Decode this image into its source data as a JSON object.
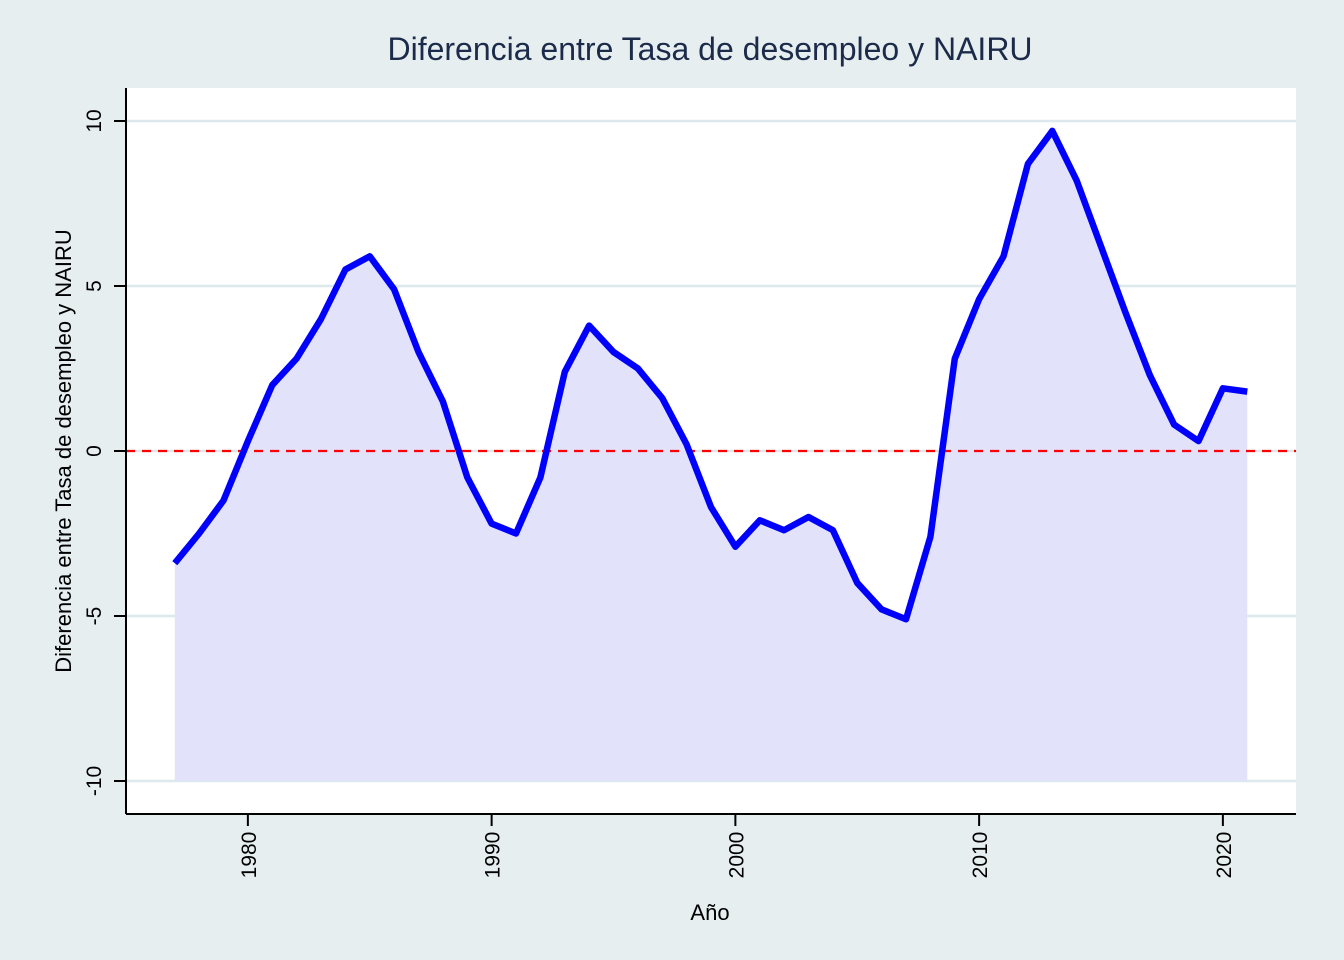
{
  "chart_data": {
    "type": "area",
    "title": "Diferencia entre Tasa de desempleo y NAIRU",
    "xlabel": "Año",
    "ylabel": "Diferencia entre Tasa de desempleo y NAIRU",
    "xlim": [
      1975,
      2023
    ],
    "ylim": [
      -11,
      11
    ],
    "xticks": [
      1980,
      1990,
      2000,
      2010,
      2020
    ],
    "yticks": [
      -10,
      -5,
      0,
      5,
      10
    ],
    "x_tick_labels": [
      "1980",
      "1990",
      "2000",
      "2010",
      "2020"
    ],
    "y_tick_labels": [
      "-10",
      "-5",
      "0",
      "5",
      "10"
    ],
    "grid": "horizontal",
    "baseline": -10,
    "reference_line": {
      "y": 0,
      "style": "dashed"
    },
    "x": [
      1977,
      1978,
      1979,
      1980,
      1981,
      1982,
      1983,
      1984,
      1985,
      1986,
      1987,
      1988,
      1989,
      1990,
      1991,
      1992,
      1993,
      1994,
      1995,
      1996,
      1997,
      1998,
      1999,
      2000,
      2001,
      2002,
      2003,
      2004,
      2005,
      2006,
      2007,
      2008,
      2009,
      2010,
      2011,
      2012,
      2013,
      2014,
      2015,
      2016,
      2017,
      2018,
      2019,
      2020,
      2021
    ],
    "series": [
      {
        "values": [
          -3.4,
          -2.5,
          -1.5,
          0.3,
          2.0,
          2.8,
          4.0,
          5.5,
          5.9,
          4.9,
          3.0,
          1.5,
          -0.8,
          -2.2,
          -2.5,
          -0.8,
          2.4,
          3.8,
          3.0,
          2.5,
          1.6,
          0.2,
          -1.7,
          -2.9,
          -2.1,
          -2.4,
          -2.0,
          -2.4,
          -4.0,
          -4.8,
          -5.1,
          -2.6,
          2.8,
          4.6,
          5.9,
          8.7,
          9.7,
          8.2,
          6.2,
          4.2,
          2.3,
          0.8,
          0.3,
          1.9,
          1.8
        ]
      }
    ],
    "colors": {
      "line": "#0000ff",
      "fill": "#e2e2fb",
      "zero_line": "#ff0000",
      "grid": "#dde8ec",
      "background": "#e6eef0",
      "plot_background": "#ffffff",
      "title": "#1c2b4a"
    }
  }
}
